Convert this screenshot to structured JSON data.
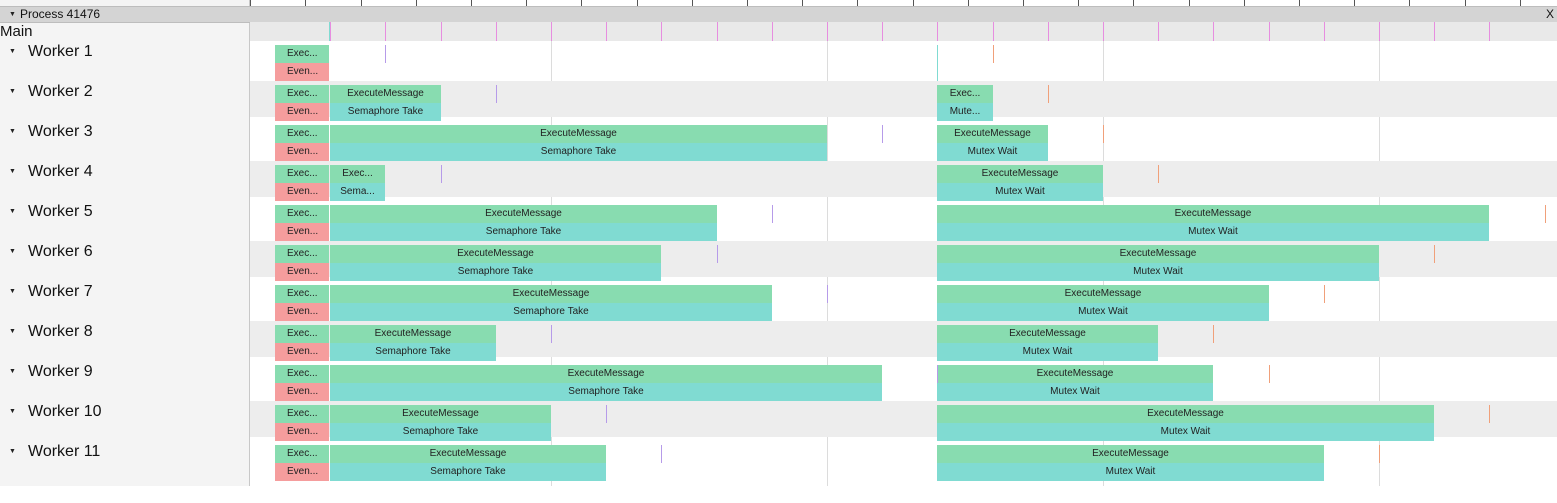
{
  "process": {
    "title": "Process 41476",
    "close_label": "X"
  },
  "main": {
    "label": "Main"
  },
  "colors": {
    "execute": "#88dcb0",
    "wait": "#80dbd2",
    "event": "#f59d9d",
    "marker_main": "#e78de0",
    "marker_purple": "#b69be9",
    "marker_orange": "#f0a07a"
  },
  "workers": [
    {
      "label": "Worker 1",
      "second": null
    },
    {
      "label": "Worker 2",
      "second": {
        "top": "Exec...",
        "bottom": "Mute..."
      }
    },
    {
      "label": "Worker 3",
      "second": {
        "top": "ExecuteMessage",
        "bottom": "Mutex Wait"
      }
    },
    {
      "label": "Worker 4",
      "second": {
        "top": "ExecuteMessage",
        "bottom": "Mutex Wait"
      }
    },
    {
      "label": "Worker 5",
      "second": {
        "top": "ExecuteMessage",
        "bottom": "Mutex Wait"
      }
    },
    {
      "label": "Worker 6",
      "second": {
        "top": "ExecuteMessage",
        "bottom": "Mutex Wait"
      }
    },
    {
      "label": "Worker 7",
      "second": {
        "top": "ExecuteMessage",
        "bottom": "Mutex Wait"
      }
    },
    {
      "label": "Worker 8",
      "second": {
        "top": "ExecuteMessage",
        "bottom": "Mutex Wait"
      }
    },
    {
      "label": "Worker 9",
      "second": {
        "top": "ExecuteMessage",
        "bottom": "Mutex Wait"
      }
    },
    {
      "label": "Worker 10",
      "second": {
        "top": "ExecuteMessage",
        "bottom": "Mutex Wait"
      }
    },
    {
      "label": "Worker 11",
      "second": {
        "top": "ExecuteMessage",
        "bottom": "Mutex Wait"
      }
    }
  ],
  "first_block": {
    "top": "Exec...",
    "bottom": "Even..."
  },
  "execute_blocks": [
    null,
    {
      "top": "ExecuteMessage",
      "bottom": "Semaphore Take"
    },
    {
      "top": "ExecuteMessage",
      "bottom": "Semaphore Take"
    },
    {
      "top": "Exec...",
      "bottom": "Sema..."
    },
    {
      "top": "ExecuteMessage",
      "bottom": "Semaphore Take"
    },
    {
      "top": "ExecuteMessage",
      "bottom": "Semaphore Take"
    },
    {
      "top": "ExecuteMessage",
      "bottom": "Semaphore Take"
    },
    {
      "top": "ExecuteMessage",
      "bottom": "Semaphore Take"
    },
    {
      "top": "ExecuteMessage",
      "bottom": "Semaphore Take"
    },
    {
      "top": "ExecuteMessage",
      "bottom": "Semaphore Take"
    },
    {
      "top": "ExecuteMessage",
      "bottom": "Semaphore Take"
    }
  ]
}
